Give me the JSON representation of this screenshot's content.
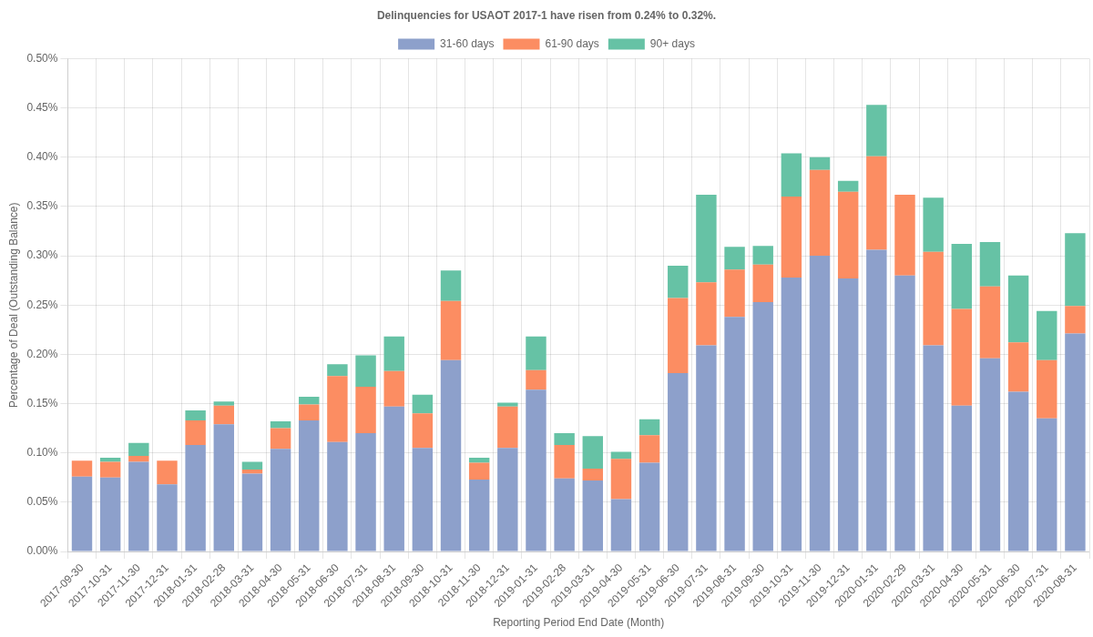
{
  "chart_data": {
    "type": "bar",
    "title": "Delinquencies for USAOT 2017-1 have risen from 0.24% to 0.32%.",
    "x_label": "Reporting Period End Date (Month)",
    "y_label": "Percentage of Deal (Outstanding Balance)",
    "categories": [
      "2017-09-30",
      "2017-10-31",
      "2017-11-30",
      "2017-12-31",
      "2018-01-31",
      "2018-02-28",
      "2018-03-31",
      "2018-04-30",
      "2018-05-31",
      "2018-06-30",
      "2018-07-31",
      "2018-08-31",
      "2018-09-30",
      "2018-10-31",
      "2018-11-30",
      "2018-12-31",
      "2019-01-31",
      "2019-02-28",
      "2019-03-31",
      "2019-04-30",
      "2019-05-31",
      "2019-06-30",
      "2019-07-31",
      "2019-08-31",
      "2019-09-30",
      "2019-10-31",
      "2019-11-30",
      "2019-12-31",
      "2020-01-31",
      "2020-02-29",
      "2020-03-31",
      "2020-04-30",
      "2020-05-31",
      "2020-06-30",
      "2020-07-31",
      "2020-08-31"
    ],
    "series": [
      {
        "name": "31-60 days",
        "color": "#8da0cb",
        "values": [
          0.076,
          0.075,
          0.091,
          0.068,
          0.108,
          0.129,
          0.079,
          0.104,
          0.133,
          0.111,
          0.12,
          0.147,
          0.105,
          0.194,
          0.073,
          0.105,
          0.164,
          0.074,
          0.072,
          0.053,
          0.09,
          0.181,
          0.209,
          0.238,
          0.253,
          0.278,
          0.3,
          0.277,
          0.306,
          0.28,
          0.209,
          0.148,
          0.196,
          0.162,
          0.135,
          0.221
        ]
      },
      {
        "name": "61-90 days",
        "color": "#fc8d62",
        "values": [
          0.016,
          0.016,
          0.006,
          0.024,
          0.025,
          0.019,
          0.004,
          0.021,
          0.016,
          0.067,
          0.047,
          0.036,
          0.035,
          0.06,
          0.017,
          0.042,
          0.02,
          0.034,
          0.012,
          0.041,
          0.028,
          0.076,
          0.064,
          0.048,
          0.038,
          0.082,
          0.087,
          0.088,
          0.095,
          0.082,
          0.095,
          0.098,
          0.073,
          0.05,
          0.059,
          0.028
        ]
      },
      {
        "name": "90+ days",
        "color": "#66c2a5",
        "values": [
          0,
          0.004,
          0.013,
          0,
          0.01,
          0.004,
          0.008,
          0.007,
          0.008,
          0.012,
          0.032,
          0.035,
          0.019,
          0.031,
          0.005,
          0.004,
          0.034,
          0.012,
          0.033,
          0.007,
          0.016,
          0.033,
          0.089,
          0.023,
          0.019,
          0.044,
          0.013,
          0.011,
          0.052,
          0,
          0.055,
          0.066,
          0.045,
          0.068,
          0.05,
          0.074
        ]
      }
    ],
    "ylim": [
      0,
      0.5
    ],
    "yticks": [
      {
        "value": 0,
        "label": "0.00%"
      },
      {
        "value": 0.05,
        "label": "0.05%"
      },
      {
        "value": 0.1,
        "label": "0.10%"
      },
      {
        "value": 0.15,
        "label": "0.15%"
      },
      {
        "value": 0.2,
        "label": "0.20%"
      },
      {
        "value": 0.25,
        "label": "0.25%"
      },
      {
        "value": 0.3,
        "label": "0.30%"
      },
      {
        "value": 0.35,
        "label": "0.35%"
      },
      {
        "value": 0.4,
        "label": "0.40%"
      },
      {
        "value": 0.45,
        "label": "0.45%"
      },
      {
        "value": 0.5,
        "label": "0.50%"
      }
    ],
    "stacked": true,
    "legend": "top",
    "grid": true
  }
}
